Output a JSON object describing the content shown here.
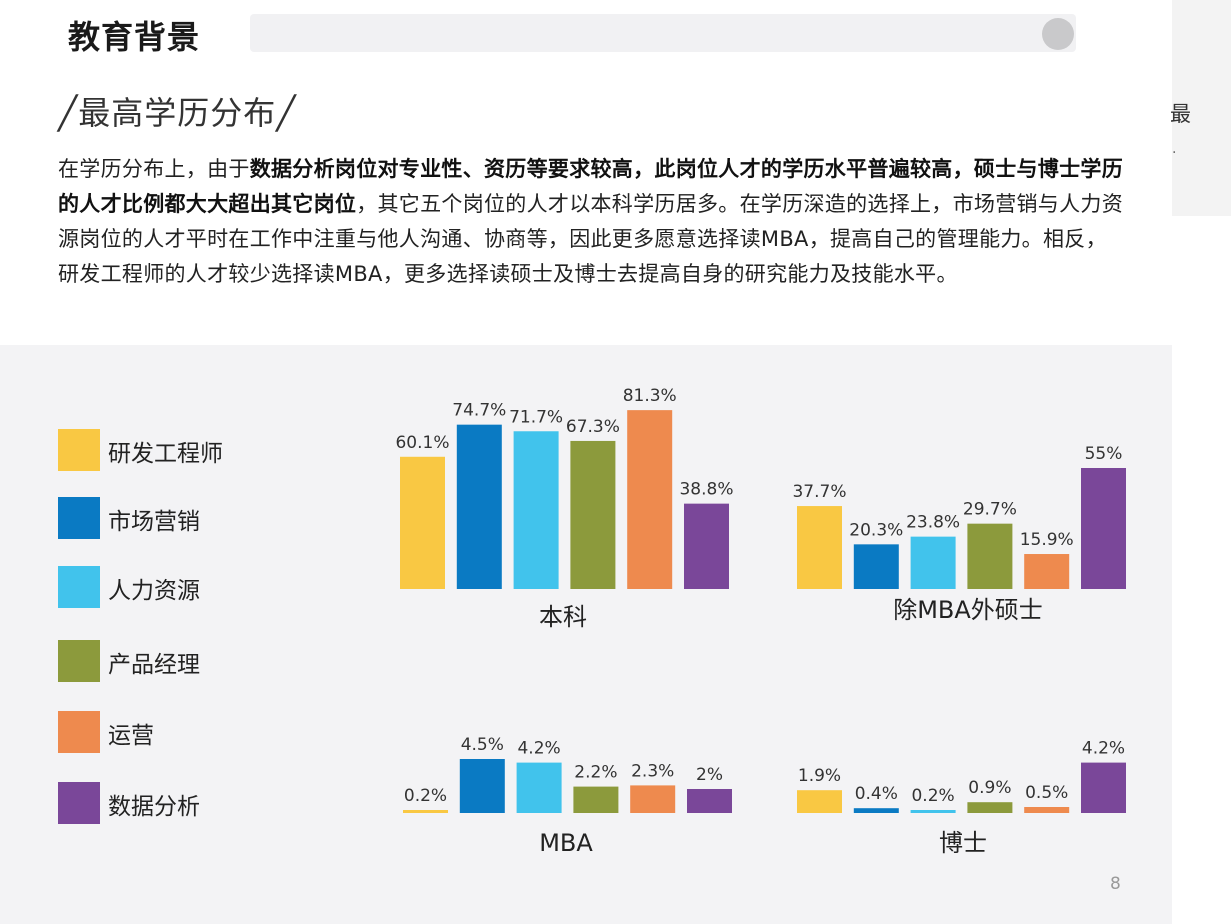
{
  "header": {
    "title": "教育背景"
  },
  "section": {
    "title": "╱最高学历分布╱"
  },
  "paragraph": {
    "t1": "在学历分布上，由于",
    "b1": "数据分析岗位对专业性、资历等要求较高，此岗位人才的学历水平普遍较高，硕士与博士学历的人才比例都大大超出其它岗位",
    "t2": "，其它五个岗位的人才以本科学历居多。在学历深造的选择上，市场营销与人力资源岗位的人才平时在工作中注重与他人沟通、协商等，因此更多愿意选择读MBA，提高自己的管理能力。相反，研发工程师的人才较少选择读MBA，更多选择读硕士及博士去提高自身的研究能力及技能水平。"
  },
  "side": {
    "char": "最"
  },
  "page_number": "8",
  "legend": [
    {
      "label": "研发工程师",
      "color": "#F9C843"
    },
    {
      "label": "市场营销",
      "color": "#0A7AC3"
    },
    {
      "label": "人力资源",
      "color": "#41C3EC"
    },
    {
      "label": "产品经理",
      "color": "#8C9A3C"
    },
    {
      "label": "运营",
      "color": "#EE8A4E"
    },
    {
      "label": "数据分析",
      "color": "#7A4799"
    }
  ],
  "chart_data": [
    {
      "type": "bar",
      "category_label": "本科",
      "series": [
        {
          "name": "研发工程师",
          "value": 60.1,
          "label": "60.1%"
        },
        {
          "name": "市场营销",
          "value": 74.7,
          "label": "74.7%"
        },
        {
          "name": "人力资源",
          "value": 71.7,
          "label": "71.7%"
        },
        {
          "name": "产品经理",
          "value": 67.3,
          "label": "67.3%"
        },
        {
          "name": "运营",
          "value": 81.3,
          "label": "81.3%"
        },
        {
          "name": "数据分析",
          "value": 38.8,
          "label": "38.8%"
        }
      ]
    },
    {
      "type": "bar",
      "category_label": "除MBA外硕士",
      "series": [
        {
          "name": "研发工程师",
          "value": 37.7,
          "label": "37.7%"
        },
        {
          "name": "市场营销",
          "value": 20.3,
          "label": "20.3%"
        },
        {
          "name": "人力资源",
          "value": 23.8,
          "label": "23.8%"
        },
        {
          "name": "产品经理",
          "value": 29.7,
          "label": "29.7%"
        },
        {
          "name": "运营",
          "value": 15.9,
          "label": "15.9%"
        },
        {
          "name": "数据分析",
          "value": 55,
          "label": "55%"
        }
      ]
    },
    {
      "type": "bar",
      "category_label": "MBA",
      "series": [
        {
          "name": "研发工程师",
          "value": 0.2,
          "label": "0.2%"
        },
        {
          "name": "市场营销",
          "value": 4.5,
          "label": "4.5%"
        },
        {
          "name": "人力资源",
          "value": 4.2,
          "label": "4.2%"
        },
        {
          "name": "产品经理",
          "value": 2.2,
          "label": "2.2%"
        },
        {
          "name": "运营",
          "value": 2.3,
          "label": "2.3%"
        },
        {
          "name": "数据分析",
          "value": 2,
          "label": "2%"
        }
      ]
    },
    {
      "type": "bar",
      "category_label": "博士",
      "series": [
        {
          "name": "研发工程师",
          "value": 1.9,
          "label": "1.9%"
        },
        {
          "name": "市场营销",
          "value": 0.4,
          "label": "0.4%"
        },
        {
          "name": "人力资源",
          "value": 0.2,
          "label": "0.2%"
        },
        {
          "name": "产品经理",
          "value": 0.9,
          "label": "0.9%"
        },
        {
          "name": "运营",
          "value": 0.5,
          "label": "0.5%"
        },
        {
          "name": "数据分析",
          "value": 4.2,
          "label": "4.2%"
        }
      ]
    }
  ]
}
